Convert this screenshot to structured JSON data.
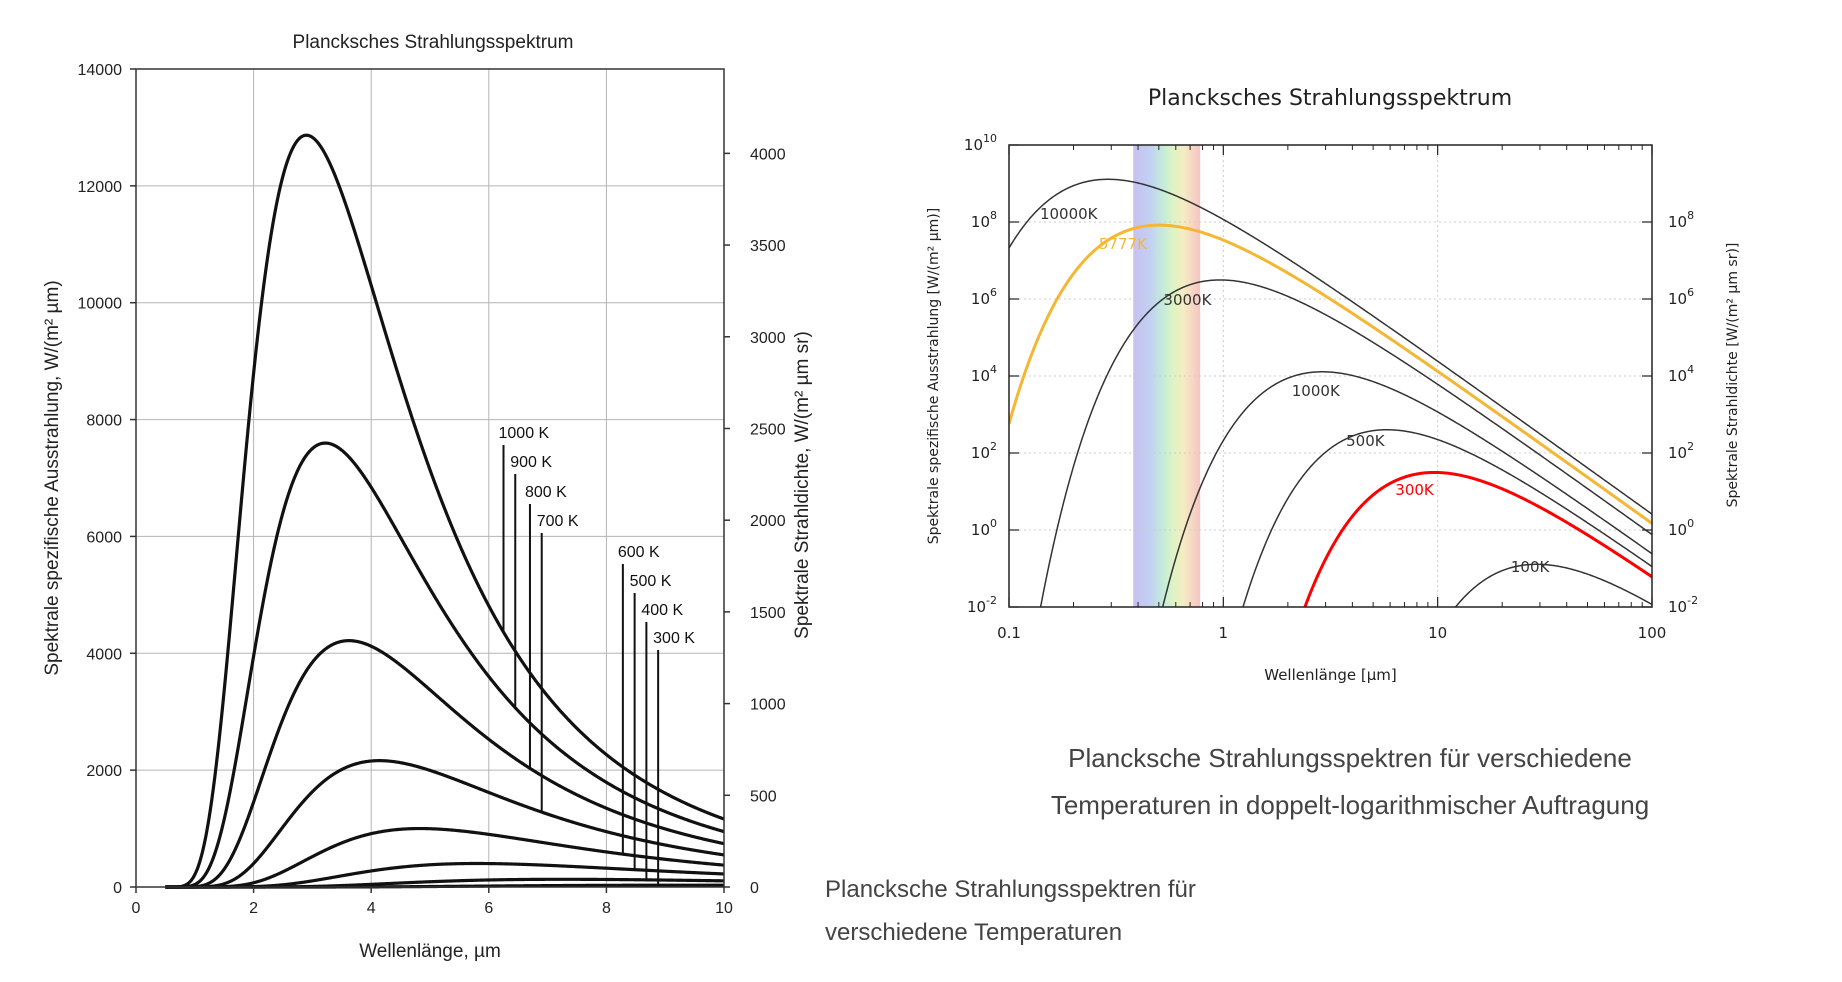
{
  "chart_data": [
    {
      "type": "line",
      "title": "Plancksches Strahlungsspektrum",
      "xlabel": "Wellenlänge, µm",
      "ylabel": "Spektrale spezifische Ausstrahlung, W/(m² µm)",
      "y2label": "Spektrale Strahldichte, W/(m² µm sr)",
      "xlim": [
        0,
        10
      ],
      "ylim": [
        0,
        14000
      ],
      "y2lim": [
        0,
        4460
      ],
      "grid": true,
      "x_ticks": [
        0,
        2,
        4,
        6,
        8,
        10
      ],
      "y_ticks": [
        0,
        2000,
        4000,
        6000,
        8000,
        10000,
        12000,
        14000
      ],
      "y2_ticks": [
        0,
        500,
        1000,
        1500,
        2000,
        2500,
        3000,
        3500,
        4000
      ],
      "series": [
        {
          "name": "1000 K",
          "temperature": 1000,
          "label_x": 6.25
        },
        {
          "name": "900 K",
          "temperature": 900,
          "label_x": 6.45
        },
        {
          "name": "800 K",
          "temperature": 800,
          "label_x": 6.7
        },
        {
          "name": "700 K",
          "temperature": 700,
          "label_x": 6.9
        },
        {
          "name": "600 K",
          "temperature": 600,
          "label_x": 8.28
        },
        {
          "name": "500 K",
          "temperature": 500,
          "label_x": 8.48
        },
        {
          "name": "400 K",
          "temperature": 400,
          "label_x": 8.68
        },
        {
          "name": "300 K",
          "temperature": 300,
          "label_x": 8.88
        }
      ]
    },
    {
      "type": "line",
      "xscale": "log",
      "yscale": "log",
      "title": "Plancksches Strahlungsspektrum",
      "xlabel": "Wellenlänge [µm]",
      "ylabel": "Spektrale spezifische Ausstrahlung [W/(m² µm)]",
      "y2label": "Spektrale Strahldichte [W/(m² µm sr)]",
      "xlim": [
        0.1,
        100
      ],
      "ylim": [
        0.01,
        10000000000
      ],
      "grid": true,
      "x_ticks": [
        {
          "v": 0.1,
          "t": "0.1"
        },
        {
          "v": 1,
          "t": "1"
        },
        {
          "v": 10,
          "t": "10"
        },
        {
          "v": 100,
          "t": "100"
        }
      ],
      "y_ticks": [
        {
          "v": 0.01,
          "b": "10",
          "e": "-2"
        },
        {
          "v": 1,
          "b": "10",
          "e": "0"
        },
        {
          "v": 100,
          "b": "10",
          "e": "2"
        },
        {
          "v": 10000,
          "b": "10",
          "e": "4"
        },
        {
          "v": 1000000,
          "b": "10",
          "e": "6"
        },
        {
          "v": 100000000,
          "b": "10",
          "e": "8"
        },
        {
          "v": 10000000000,
          "b": "10",
          "e": "10"
        }
      ],
      "y2_ticks": [
        {
          "v": 0.01,
          "b": "10",
          "e": "-2"
        },
        {
          "v": 1,
          "b": "10",
          "e": "0"
        },
        {
          "v": 100,
          "b": "10",
          "e": "2"
        },
        {
          "v": 10000,
          "b": "10",
          "e": "4"
        },
        {
          "v": 1000000,
          "b": "10",
          "e": "6"
        },
        {
          "v": 100000000,
          "b": "10",
          "e": "8"
        }
      ],
      "visible_band": [
        0.38,
        0.78
      ],
      "series": [
        {
          "name": "10000K",
          "temperature": 10000,
          "color": "#333333",
          "label_x": 0.19,
          "label_y": 120000000
        },
        {
          "name": "5777K",
          "temperature": 5777,
          "color": "#f5b733",
          "label_x": 0.34,
          "label_y": 20000000
        },
        {
          "name": "3000K",
          "temperature": 3000,
          "color": "#333333",
          "label_x": 0.68,
          "label_y": 700000
        },
        {
          "name": "1000K",
          "temperature": 1000,
          "color": "#333333",
          "label_x": 2.7,
          "label_y": 3000
        },
        {
          "name": "500K",
          "temperature": 500,
          "color": "#333333",
          "label_x": 4.6,
          "label_y": 150
        },
        {
          "name": "300K",
          "temperature": 300,
          "color": "#ff0000",
          "label_x": 7.8,
          "label_y": 8
        },
        {
          "name": "100K",
          "temperature": 100,
          "color": "#333333",
          "label_x": 27,
          "label_y": 0.08
        }
      ]
    }
  ],
  "captions": {
    "left": [
      "Plancksche Strahlungsspektren für",
      "verschiedene Temperaturen"
    ],
    "right": [
      "Plancksche Strahlungsspektren für verschiedene",
      "Temperaturen in doppelt-logarithmischer Auftragung"
    ]
  }
}
